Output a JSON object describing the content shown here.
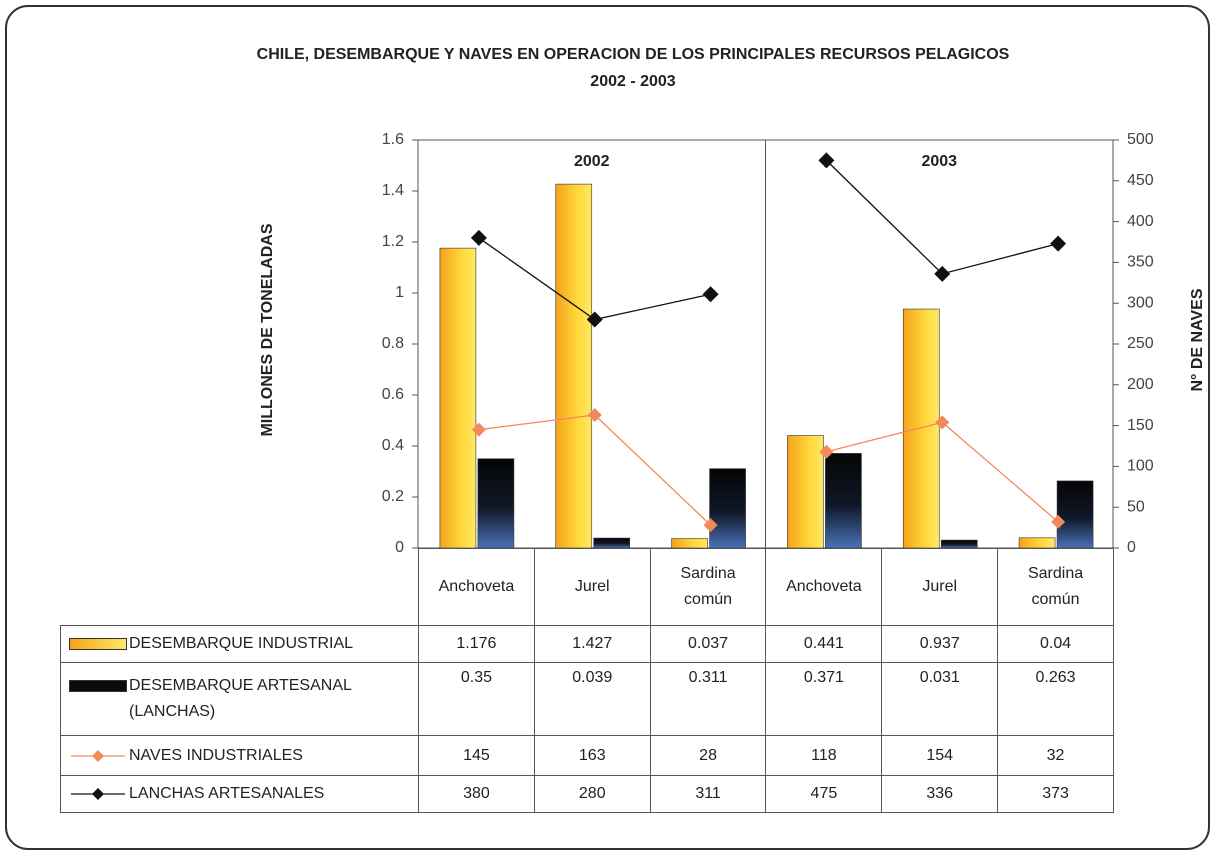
{
  "chart_data": {
    "type": "bar-line",
    "title": "CHILE, DESEMBARQUE Y NAVES EN OPERACION DE LOS PRINCIPALES RECURSOS PELAGICOS",
    "subtitle": "2002 - 2003",
    "y_label": "MILLONES DE TONELADAS",
    "y2_label": "N° DE NAVES",
    "groups": [
      "2002",
      "2003"
    ],
    "categories": [
      "Anchoveta",
      "Jurel",
      "Sardina común",
      "Anchoveta",
      "Jurel",
      "Sardina común"
    ],
    "series": [
      {
        "name": "DESEMBARQUE INDUSTRIAL",
        "kind": "bar",
        "color": "#f5a21b",
        "values": [
          1.176,
          1.427,
          0.037,
          0.441,
          0.937,
          0.04
        ]
      },
      {
        "name": "DESEMBARQUE ARTESANAL (LANCHAS)",
        "kind": "bar",
        "color": "#0a0a0a",
        "values": [
          0.35,
          0.039,
          0.311,
          0.371,
          0.031,
          0.263
        ]
      },
      {
        "name": "NAVES INDUSTRIALES",
        "kind": "line",
        "axis": "y2",
        "color": "#f08a5d",
        "values": [
          145,
          163,
          28,
          118,
          154,
          32
        ]
      },
      {
        "name": "LANCHAS ARTESANALES",
        "kind": "line",
        "axis": "y2",
        "color": "#111111",
        "values": [
          380,
          280,
          311,
          475,
          336,
          373
        ]
      }
    ],
    "ylim": [
      0,
      1.6
    ],
    "yticks": [
      0,
      0.2,
      0.4,
      0.6,
      0.8,
      1,
      1.2,
      1.4,
      1.6
    ],
    "y2lim": [
      0,
      500
    ],
    "y2ticks": [
      0,
      50,
      100,
      150,
      200,
      250,
      300,
      350,
      400,
      450,
      500
    ]
  }
}
